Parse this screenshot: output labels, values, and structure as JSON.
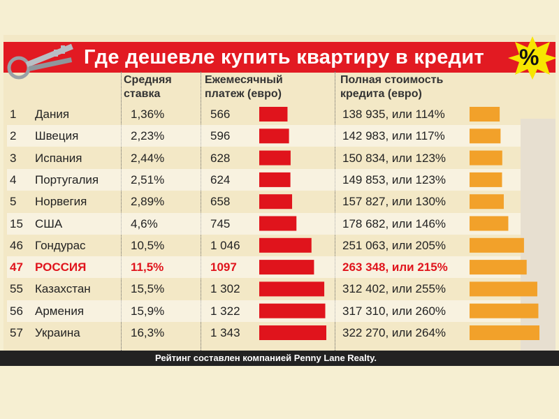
{
  "title": "Где дешевле купить квартиру в кредит",
  "badge": "%",
  "headers": {
    "rate": [
      "Средняя",
      "ставка"
    ],
    "payment": [
      "Ежемесячный",
      "платеж (евро)"
    ],
    "cost": [
      "Полная стоимость",
      "кредита (евро)"
    ]
  },
  "footer": "Рейтинг составлен компанией Penny Lane Realty.",
  "colors": {
    "title_bg": "#e21a22",
    "payment_bar": "#e0141c",
    "cost_bar": "#f2a12a",
    "highlight_text": "#e0141c"
  },
  "rows": [
    {
      "rank": "1",
      "country": "Дания",
      "rate": "1,36%",
      "payment": "566",
      "cost": "138 935, или 114%"
    },
    {
      "rank": "2",
      "country": "Швеция",
      "rate": "2,23%",
      "payment": "596",
      "cost": "142 983, или 117%"
    },
    {
      "rank": "3",
      "country": "Испания",
      "rate": "2,44%",
      "payment": "628",
      "cost": "150 834, или 123%"
    },
    {
      "rank": "4",
      "country": "Португалия",
      "rate": "2,51%",
      "payment": "624",
      "cost": "149 853, или 123%"
    },
    {
      "rank": "5",
      "country": "Норвегия",
      "rate": "2,89%",
      "payment": "658",
      "cost": "157 827, или 130%"
    },
    {
      "rank": "15",
      "country": "США",
      "rate": "4,6%",
      "payment": "745",
      "cost": "178 682, или 146%"
    },
    {
      "rank": "46",
      "country": "Гондурас",
      "rate": "10,5%",
      "payment": "1 046",
      "cost": "251 063, или 205%"
    },
    {
      "rank": "47",
      "country": "РОССИЯ",
      "rate": "11,5%",
      "payment": "1097",
      "cost": "263 348, или 215%",
      "highlight": true
    },
    {
      "rank": "55",
      "country": "Казахстан",
      "rate": "15,5%",
      "payment": "1 302",
      "cost": "312 402, или 255%"
    },
    {
      "rank": "56",
      "country": "Армения",
      "rate": "15,9%",
      "payment": "1 322",
      "cost": "317 310, или 260%"
    },
    {
      "rank": "57",
      "country": "Украина",
      "rate": "16,3%",
      "payment": "1 343",
      "cost": "322 270, или 264%"
    }
  ],
  "chart_data": {
    "type": "bar",
    "title": "Где дешевле купить квартиру в кредит",
    "categories": [
      "Дания",
      "Швеция",
      "Испания",
      "Португалия",
      "Норвегия",
      "США",
      "Гондурас",
      "РОССИЯ",
      "Казахстан",
      "Армения",
      "Украина"
    ],
    "series": [
      {
        "name": "Ежемесячный платеж (евро)",
        "values": [
          566,
          596,
          628,
          624,
          658,
          745,
          1046,
          1097,
          1302,
          1322,
          1343
        ]
      },
      {
        "name": "Полная стоимость кредита (евро)",
        "values": [
          138935,
          142983,
          150834,
          149853,
          157827,
          178682,
          251063,
          263348,
          312402,
          317310,
          322270
        ]
      }
    ],
    "xlabel": "",
    "ylabel": "",
    "grid": false
  }
}
